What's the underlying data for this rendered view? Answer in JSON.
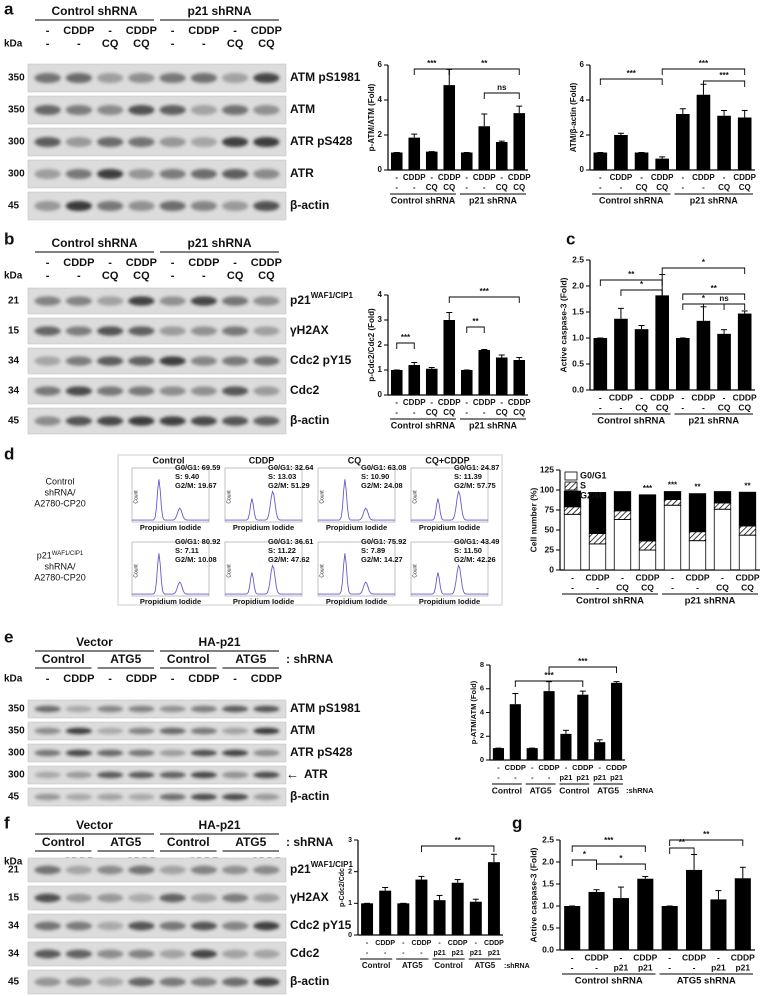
{
  "panel_labels": [
    "a",
    "b",
    "c",
    "d",
    "e",
    "f",
    "g"
  ],
  "blots": [
    {
      "kda": "kDa",
      "headers": [
        {
          "items": [
            "Control shRNA",
            "p21 shRNA"
          ]
        }
      ],
      "lanes": [
        [
          "-",
          "CDDP",
          "-",
          "CDDP",
          "-",
          "CDDP",
          "-",
          "CDDP"
        ],
        [
          "-",
          "-",
          "CQ",
          "CQ",
          "-",
          "-",
          "CQ",
          "CQ"
        ]
      ],
      "rows": [
        {
          "marker": "350",
          "label": "ATM pS1981"
        },
        {
          "marker": "350",
          "label": "ATM"
        },
        {
          "marker": "300",
          "label": "ATR pS428"
        },
        {
          "marker": "300",
          "label": "ATR"
        },
        {
          "marker": "45",
          "label": "β-actin"
        }
      ]
    },
    {
      "kda": "kDa",
      "headers": [
        {
          "items": [
            "Control shRNA",
            "p21 shRNA"
          ]
        }
      ],
      "lanes": [
        [
          "-",
          "CDDP",
          "-",
          "CDDP",
          "-",
          "CDDP",
          "-",
          "CDDP"
        ],
        [
          "-",
          "-",
          "CQ",
          "CQ",
          "-",
          "-",
          "CQ",
          "CQ"
        ]
      ],
      "rows": [
        {
          "marker": "21",
          "label": "p21",
          "sup": "WAF1/CIP1"
        },
        {
          "marker": "15",
          "label": "γH2AX"
        },
        {
          "marker": "34",
          "label": "Cdc2 pY15"
        },
        {
          "marker": "34",
          "label": "Cdc2"
        },
        {
          "marker": "45",
          "label": "β-actin"
        }
      ]
    },
    {
      "kda": "kDa",
      "headers": [
        {
          "items": [
            "Vector",
            "HA-p21"
          ]
        },
        {
          "items": [
            "Control",
            "ATG5",
            "Control",
            "ATG5"
          ],
          "suffix": ": shRNA"
        }
      ],
      "lanes": [
        [
          "-",
          "CDDP",
          "-",
          "CDDP",
          "-",
          "CDDP",
          "-",
          "CDDP"
        ]
      ],
      "rows": [
        {
          "marker": "350",
          "label": "ATM pS1981"
        },
        {
          "marker": "350",
          "label": "ATM"
        },
        {
          "marker": "300",
          "label": "ATR pS428"
        },
        {
          "marker": "300",
          "label": "ATR",
          "arrow": "←"
        },
        {
          "marker": "45",
          "label": "β-actin"
        }
      ]
    },
    {
      "kda": "kDa",
      "headers": [
        {
          "items": [
            "Vector",
            "HA-p21"
          ]
        },
        {
          "items": [
            "Control",
            "ATG5",
            "Control",
            "ATG5"
          ],
          "suffix": ": shRNA"
        }
      ],
      "lanes": [
        [
          "-",
          "CDDP",
          "-",
          "CDDP",
          "-",
          "CDDP",
          "-",
          "CDDP"
        ]
      ],
      "rows": [
        {
          "marker": "21",
          "label": "p21",
          "sup": "WAF1/CIP1"
        },
        {
          "marker": "15",
          "label": "γH2AX"
        },
        {
          "marker": "34",
          "label": "Cdc2 pY15"
        },
        {
          "marker": "34",
          "label": "Cdc2"
        },
        {
          "marker": "45",
          "label": "β-actin"
        }
      ]
    }
  ],
  "flow": {
    "columns": [
      "Control",
      "CDDP",
      "CQ",
      "CQ+CDDP"
    ],
    "xlabel": "Propidium Iodide",
    "ylabel": "Count",
    "rows": [
      {
        "label": [
          "Control",
          "shRNA/",
          "A2780-CP20"
        ],
        "stats": [
          [
            "G0/G1: 69.59",
            "S: 9.40",
            "G2/M: 19.67"
          ],
          [
            "G0/G1: 32.64",
            "S: 13.03",
            "G2/M: 51.29"
          ],
          [
            "G0/G1: 63.08",
            "S: 10.90",
            "G2/M: 24.08"
          ],
          [
            "G0/G1: 24.87",
            "S: 11.39",
            "G2/M: 57.75"
          ]
        ]
      },
      {
        "label": [
          "p21",
          "shRNA/",
          "A2780-CP20"
        ],
        "sup": "WAF1/CIP1",
        "stats": [
          [
            "G0/G1: 80.92",
            "S: 7.11",
            "G2/M: 10.08"
          ],
          [
            "G0/G1: 36.61",
            "S: 11.22",
            "G2/M: 47.62"
          ],
          [
            "G0/G1: 75.92",
            "S: 7.89",
            "G2/M: 14.27"
          ],
          [
            "G0/G1: 43.49",
            "S: 11.50",
            "G2/M: 42.26"
          ]
        ]
      }
    ]
  },
  "chart_data": [
    {
      "type": "bar",
      "ylabel": "p-ATM/ATM (Fold)",
      "color": "#000000",
      "categories": [
        [
          "-",
          "-"
        ],
        [
          "CDDP",
          "-"
        ],
        [
          "-",
          "CQ"
        ],
        [
          "CDDP",
          "CQ"
        ],
        [
          "-",
          "-"
        ],
        [
          "CDDP",
          "-"
        ],
        [
          "-",
          "CQ"
        ],
        [
          "CDDP",
          "CQ"
        ]
      ],
      "values": [
        1,
        1.85,
        1.05,
        4.85,
        1,
        2.5,
        1.6,
        3.25
      ],
      "errors": [
        0,
        0.2,
        0,
        0.9,
        0,
        0.7,
        0.05,
        0.4
      ],
      "ylim": [
        0,
        6
      ],
      "yticks": [
        0,
        2,
        4,
        6
      ],
      "groups": [
        "Control shRNA",
        "p21 shRNA"
      ],
      "annotations": [
        "***",
        "**",
        "ns"
      ]
    },
    {
      "type": "bar",
      "ylabel": "ATM/β-actin (Fold)",
      "color": "#000000",
      "categories": [
        [
          "-",
          "-"
        ],
        [
          "CDDP",
          "-"
        ],
        [
          "-",
          "CQ"
        ],
        [
          "CDDP",
          "CQ"
        ],
        [
          "-",
          "-"
        ],
        [
          "CDDP",
          "-"
        ],
        [
          "-",
          "CQ"
        ],
        [
          "CDDP",
          "CQ"
        ]
      ],
      "values": [
        1,
        2,
        1,
        0.65,
        3.2,
        4.3,
        3.1,
        3.0
      ],
      "errors": [
        0,
        0.1,
        0,
        0.1,
        0.3,
        0.6,
        0.3,
        0.4
      ],
      "ylim": [
        0,
        6
      ],
      "yticks": [
        0,
        2,
        4,
        6
      ],
      "groups": [
        "Control shRNA",
        "p21 shRNA"
      ],
      "annotations": [
        "***",
        "***",
        "***"
      ]
    },
    {
      "type": "bar",
      "ylabel": "p-Cdc2/Cdc2 (Fold)",
      "color": "#000000",
      "categories": [
        [
          "-",
          "-"
        ],
        [
          "CDDP",
          "-"
        ],
        [
          "-",
          "CQ"
        ],
        [
          "CDDP",
          "CQ"
        ],
        [
          "-",
          "-"
        ],
        [
          "CDDP",
          "-"
        ],
        [
          "-",
          "CQ"
        ],
        [
          "CDDP",
          "CQ"
        ]
      ],
      "values": [
        1,
        1.2,
        1.05,
        3,
        1,
        1.8,
        1.5,
        1.4
      ],
      "errors": [
        0,
        0.1,
        0.05,
        0.3,
        0,
        0.02,
        0.1,
        0.1
      ],
      "ylim": [
        0,
        4
      ],
      "yticks": [
        0,
        1,
        2,
        3,
        4
      ],
      "groups": [
        "Control shRNA",
        "p21 shRNA"
      ],
      "annotations": [
        "***",
        "**",
        "***"
      ]
    },
    {
      "type": "bar",
      "ylabel": "Active caspase-3 (Fold)",
      "color": "#000000",
      "categories": [
        [
          "-",
          "-"
        ],
        [
          "CDDP",
          "-"
        ],
        [
          "-",
          "CQ"
        ],
        [
          "CDDP",
          "CQ"
        ],
        [
          "-",
          "-"
        ],
        [
          "CDDP",
          "-"
        ],
        [
          "-",
          "CQ"
        ],
        [
          "CDDP",
          "CQ"
        ]
      ],
      "values": [
        1,
        1.37,
        1.17,
        1.82,
        1,
        1.33,
        1.08,
        1.47
      ],
      "errors": [
        0,
        0.2,
        0.07,
        0.4,
        0,
        0.27,
        0.08,
        0.05
      ],
      "ylim": [
        0,
        2.5
      ],
      "yticks": [
        {
          "value": 0,
          "label": "0.0"
        },
        {
          "value": 0.5,
          "label": "0.5"
        },
        {
          "value": 1,
          "label": "1.0"
        },
        {
          "value": 1.5,
          "label": "1.5"
        },
        {
          "value": 2,
          "label": "2.0"
        },
        {
          "value": 2.5,
          "label": "2.5"
        }
      ],
      "groups": [
        "Control shRNA",
        "p21 shRNA"
      ],
      "annotations": [
        "**",
        "*",
        "*",
        "*",
        "**",
        "ns"
      ]
    },
    {
      "type": "stacked_bar",
      "ylabel": "Cell number (%)",
      "categories": [
        [
          "-",
          "-"
        ],
        [
          "CDDP",
          "-"
        ],
        [
          "-",
          "CQ"
        ],
        [
          "CDDP",
          "CQ"
        ],
        [
          "-",
          "-"
        ],
        [
          "CDDP",
          "-"
        ],
        [
          "-",
          "CQ"
        ],
        [
          "CDDP",
          "CQ"
        ]
      ],
      "series": [
        {
          "name": "G0/G1",
          "color": "#ffffff",
          "values": [
            69.59,
            32.64,
            63.08,
            24.87,
            80.92,
            36.61,
            75.92,
            43.49
          ]
        },
        {
          "name": "S",
          "color": "#8c8c8c",
          "values": [
            9.4,
            13.03,
            10.9,
            11.39,
            7.11,
            11.22,
            7.89,
            11.5
          ]
        },
        {
          "name": "G2/M",
          "color": "#000000",
          "values": [
            19.67,
            51.29,
            24.08,
            57.75,
            10.08,
            47.62,
            14.27,
            42.26
          ]
        }
      ],
      "ylim": [
        0,
        125
      ],
      "yticks": [
        0,
        25,
        50,
        75,
        100,
        125
      ],
      "groups": [
        "Control shRNA",
        "p21 shRNA"
      ],
      "annotations": [
        "***",
        "***",
        "**",
        "**"
      ],
      "legend": "top-left"
    },
    {
      "type": "bar",
      "ylabel": "p-ATM/ATM (Fold)",
      "color": "#000000",
      "categories": [
        [
          "-",
          "-"
        ],
        [
          "CDDP",
          "-"
        ],
        [
          "-",
          "-"
        ],
        [
          "CDDP",
          "-"
        ],
        [
          "-",
          "p21"
        ],
        [
          "CDDP",
          "p21"
        ],
        [
          "-",
          "p21"
        ],
        [
          "CDDP",
          "p21"
        ]
      ],
      "values": [
        1,
        4.7,
        1,
        5.8,
        2.2,
        5.5,
        1.5,
        6.5
      ],
      "errors": [
        0,
        0.9,
        0,
        0.8,
        0.3,
        0.3,
        0.2,
        0.1
      ],
      "ylim": [
        0,
        8
      ],
      "yticks": [
        0,
        2,
        4,
        6,
        8
      ],
      "groups": [
        "Control",
        "ATG5",
        "Control",
        "ATG5"
      ],
      "groups_suffix": ":shRNA",
      "annotations": [
        "***",
        "***"
      ]
    },
    {
      "type": "bar",
      "ylabel": "p-Cdc2/Cdc",
      "color": "#000000",
      "categories": [
        [
          "-",
          "-"
        ],
        [
          "CDDP",
          "-"
        ],
        [
          "-",
          "-"
        ],
        [
          "CDDP",
          "-"
        ],
        [
          "-",
          "p21"
        ],
        [
          "CDDP",
          "p21"
        ],
        [
          "-",
          "p21"
        ],
        [
          "CDDP",
          "p21"
        ]
      ],
      "values": [
        1,
        1.4,
        1,
        1.75,
        1.1,
        1.65,
        1.05,
        2.3
      ],
      "errors": [
        0,
        0.1,
        0,
        0.1,
        0.15,
        0.1,
        0.08,
        0.25
      ],
      "ylim": [
        0,
        3
      ],
      "yticks": [
        0,
        1,
        2,
        3
      ],
      "groups": [
        "Control",
        "ATG5",
        "Control",
        "ATG5"
      ],
      "groups_suffix": ":shRNA",
      "annotations": [
        "**"
      ]
    },
    {
      "type": "bar",
      "ylabel": "Active caspase-3 (Fold)",
      "color": "#000000",
      "categories": [
        [
          "-",
          "-"
        ],
        [
          "CDDP",
          "-"
        ],
        [
          "-",
          "p21"
        ],
        [
          "CDDP",
          "p21"
        ],
        [
          "-",
          "-"
        ],
        [
          "CDDP",
          "-"
        ],
        [
          "-",
          "p21"
        ],
        [
          "CDDP",
          "p21"
        ]
      ],
      "values": [
        1,
        1.32,
        1.18,
        1.62,
        1,
        1.82,
        1.15,
        1.63
      ],
      "errors": [
        0,
        0.05,
        0.25,
        0.05,
        0,
        0.35,
        0.2,
        0.25
      ],
      "ylim": [
        0,
        2.5
      ],
      "yticks": [
        {
          "value": 0,
          "label": "0.0"
        },
        {
          "value": 0.5,
          "label": "0.5"
        },
        {
          "value": 1,
          "label": "1.0"
        },
        {
          "value": 1.5,
          "label": "1.5"
        },
        {
          "value": 2,
          "label": "2.0"
        },
        {
          "value": 2.5,
          "label": "2.5"
        }
      ],
      "groups": [
        "Control shRNA",
        "ATG5 shRNA"
      ],
      "annotations": [
        "*",
        "***",
        "*",
        "**",
        "**"
      ]
    }
  ]
}
